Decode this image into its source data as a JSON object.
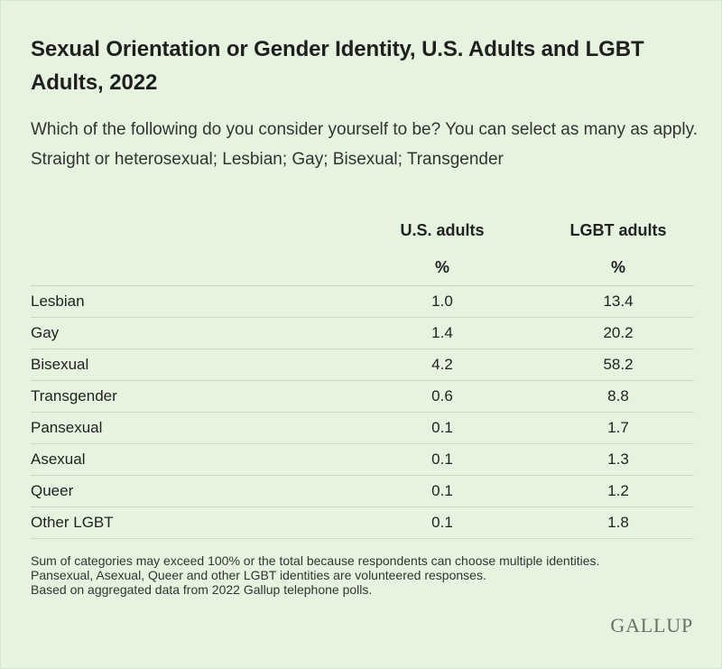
{
  "chart_data": {
    "type": "table",
    "title": "Sexual Orientation or Gender Identity, U.S. Adults and LGBT Adults, 2022",
    "subtitle": "Which of the following do you consider yourself to be? You can select as many as apply. Straight or heterosexual; Lesbian; Gay; Bisexual; Transgender",
    "columns": [
      {
        "label": "U.S. adults",
        "unit": "%"
      },
      {
        "label": "LGBT adults",
        "unit": "%"
      }
    ],
    "rows": [
      {
        "label": "Lesbian",
        "us_adults": "1.0",
        "lgbt_adults": "13.4"
      },
      {
        "label": "Gay",
        "us_adults": "1.4",
        "lgbt_adults": "20.2"
      },
      {
        "label": "Bisexual",
        "us_adults": "4.2",
        "lgbt_adults": "58.2"
      },
      {
        "label": "Transgender",
        "us_adults": "0.6",
        "lgbt_adults": "8.8"
      },
      {
        "label": "Pansexual",
        "us_adults": "0.1",
        "lgbt_adults": "1.7"
      },
      {
        "label": "Asexual",
        "us_adults": "0.1",
        "lgbt_adults": "1.3"
      },
      {
        "label": "Queer",
        "us_adults": "0.1",
        "lgbt_adults": "1.2"
      },
      {
        "label": "Other LGBT",
        "us_adults": "0.1",
        "lgbt_adults": "1.8"
      }
    ],
    "notes": [
      "Sum of categories may exceed 100% or the total because respondents can choose multiple identities.",
      "Pansexual, Asexual, Queer and other LGBT identities are volunteered responses.",
      "Based on aggregated data from 2022 Gallup telephone polls."
    ],
    "source_logo": "GALLUP"
  },
  "colors": {
    "background": "#E6F3DF",
    "text": "#222222",
    "rule": "#CBDAC3",
    "logo": "#6A7069"
  }
}
